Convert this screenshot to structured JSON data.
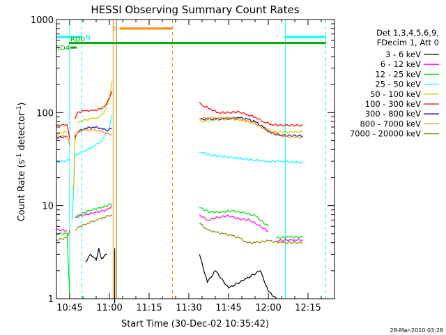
{
  "chart_data": {
    "type": "line",
    "title": "HESSI Observing Summary Count Rates",
    "xlabel": "Start Time (30-Dec-02 10:35:42)",
    "ylabel_main": "Count Rate (s",
    "ylabel_sup1": "-1",
    "ylabel_mid": " detector",
    "ylabel_sup2": "-1",
    "ylabel_end": ")",
    "yscale": "log",
    "ylim": [
      1,
      1000
    ],
    "xlim_minutes": [
      -5,
      100
    ],
    "x_ticks": [
      {
        "m": 0,
        "label": "10:45"
      },
      {
        "m": 15,
        "label": "11:00"
      },
      {
        "m": 30,
        "label": "11:15"
      },
      {
        "m": 45,
        "label": "11:30"
      },
      {
        "m": 60,
        "label": "11:45"
      },
      {
        "m": 75,
        "label": "12:00"
      },
      {
        "m": 90,
        "label": "12:15"
      }
    ],
    "y_ticks": [
      {
        "v": 1,
        "label": "1"
      },
      {
        "v": 10,
        "label": "10"
      },
      {
        "v": 100,
        "label": "100"
      },
      {
        "v": 1000,
        "label": "1000"
      }
    ],
    "legend_header": [
      "Det 1,3,4,5,6,9,",
      "FDecim 1, Att 0"
    ],
    "series": [
      {
        "name": "3 - 6 keV",
        "color": "#000000",
        "segments": [
          [
            [
              6,
              2.5
            ],
            [
              8,
              3.0
            ],
            [
              10,
              2.6
            ],
            [
              11,
              3.5
            ],
            [
              12,
              2.7
            ],
            [
              14,
              3.0
            ]
          ],
          [
            [
              17,
              3.5
            ],
            [
              17,
              0.9
            ]
          ],
          [
            [
              49,
              3.0
            ],
            [
              52,
              1.5
            ],
            [
              55,
              2.0
            ],
            [
              60,
              1.3
            ],
            [
              66,
              1.6
            ],
            [
              72,
              2.0
            ],
            [
              75,
              1.2
            ],
            [
              78,
              1.0
            ]
          ]
        ]
      },
      {
        "name": "6 - 12 keV",
        "color": "#ff00ff",
        "segments": [
          [
            [
              -5,
              5.5
            ],
            [
              -1,
              5.4
            ]
          ],
          [
            [
              2,
              7.5
            ],
            [
              6,
              8.0
            ],
            [
              10,
              8.5
            ],
            [
              14,
              9.0
            ],
            [
              16,
              10.0
            ]
          ],
          [
            [
              49,
              8.0
            ],
            [
              52,
              7.0
            ],
            [
              56,
              7.5
            ],
            [
              60,
              7.8
            ],
            [
              64,
              7.2
            ],
            [
              68,
              7.0
            ],
            [
              72,
              6.0
            ],
            [
              75,
              5.3
            ]
          ],
          [
            [
              78,
              4.2
            ],
            [
              85,
              4.3
            ],
            [
              88,
              4.3
            ]
          ]
        ]
      },
      {
        "name": "12 - 25 keV",
        "color": "#00dd00",
        "segments": [
          [
            [
              -5,
              5.0
            ],
            [
              -1,
              5.0
            ],
            [
              0,
              1.1
            ]
          ],
          [
            [
              2,
              7.5
            ],
            [
              4,
              8.0
            ],
            [
              8,
              9.0
            ],
            [
              12,
              9.5
            ],
            [
              16,
              10.5
            ]
          ],
          [
            [
              49,
              9.5
            ],
            [
              53,
              8.5
            ],
            [
              57,
              8.5
            ],
            [
              61,
              8.8
            ],
            [
              65,
              8.5
            ],
            [
              70,
              7.8
            ],
            [
              75,
              6.0
            ]
          ],
          [
            [
              78,
              4.5
            ],
            [
              83,
              4.6
            ],
            [
              88,
              4.6
            ]
          ]
        ]
      },
      {
        "name": "25 - 50 keV",
        "color": "#00ffff",
        "segments": [
          [
            [
              -5,
              29
            ],
            [
              0,
              31
            ]
          ],
          [
            [
              1,
              7.0
            ],
            [
              2,
              35
            ],
            [
              5,
              38
            ],
            [
              8,
              42
            ],
            [
              11,
              47
            ],
            [
              13,
              55
            ],
            [
              15,
              68
            ],
            [
              16,
              95
            ]
          ],
          [
            [
              49,
              38
            ],
            [
              53,
              35
            ],
            [
              57,
              34
            ],
            [
              61,
              33
            ],
            [
              65,
              32
            ],
            [
              69,
              31
            ],
            [
              75,
              30
            ],
            [
              80,
              30
            ],
            [
              88,
              29
            ]
          ]
        ]
      },
      {
        "name": "50 - 100 keV",
        "color": "#cccc00",
        "segments": [
          [
            [
              -5,
              60
            ],
            [
              -1,
              62
            ]
          ],
          [
            [
              1,
              15
            ],
            [
              1.5,
              16
            ],
            [
              2,
              62
            ]
          ],
          [
            [
              3,
              78
            ],
            [
              5,
              82
            ],
            [
              8,
              86
            ],
            [
              11,
              88
            ],
            [
              13,
              100
            ],
            [
              15,
              140
            ],
            [
              16,
              220
            ]
          ],
          [
            [
              49,
              80
            ],
            [
              53,
              82
            ],
            [
              57,
              84
            ],
            [
              61,
              86
            ],
            [
              65,
              82
            ],
            [
              70,
              78
            ],
            [
              73,
              70
            ],
            [
              77,
              62
            ],
            [
              88,
              62
            ]
          ]
        ]
      },
      {
        "name": "100 - 300 keV",
        "color": "#ff0000",
        "segments": [
          [
            [
              -5,
              72
            ],
            [
              -1,
              75
            ],
            [
              0,
              52
            ]
          ],
          [
            [
              2,
              85
            ],
            [
              3,
              100
            ],
            [
              6,
              105
            ],
            [
              9,
              105
            ],
            [
              12,
              110
            ],
            [
              14,
              125
            ],
            [
              16,
              170
            ]
          ],
          [
            [
              49,
              130
            ],
            [
              50,
              120
            ],
            [
              53,
              110
            ],
            [
              56,
              100
            ],
            [
              60,
              100
            ],
            [
              64,
              102
            ],
            [
              67,
              95
            ],
            [
              70,
              90
            ],
            [
              73,
              80
            ],
            [
              76,
              75
            ],
            [
              80,
              73
            ],
            [
              88,
              73
            ]
          ]
        ]
      },
      {
        "name": "300 - 800 keV",
        "color": "#0000aa",
        "segments": [
          [
            [
              -5,
              54
            ],
            [
              -1,
              55
            ]
          ],
          [
            [
              2,
              55
            ],
            [
              3,
              62
            ],
            [
              6,
              68
            ],
            [
              9,
              70
            ],
            [
              12,
              68
            ],
            [
              14,
              64
            ],
            [
              16,
              68
            ]
          ],
          [
            [
              49,
              85
            ],
            [
              52,
              85
            ],
            [
              55,
              85
            ],
            [
              58,
              86
            ],
            [
              61,
              86
            ],
            [
              64,
              88
            ],
            [
              67,
              85
            ],
            [
              70,
              80
            ],
            [
              73,
              70
            ],
            [
              76,
              60
            ],
            [
              80,
              57
            ],
            [
              88,
              56
            ]
          ]
        ]
      },
      {
        "name": "800 - 7000 keV",
        "color": "#ff8800",
        "segments": [
          [
            [
              -5,
              55
            ],
            [
              -1,
              56
            ],
            [
              0,
              44
            ]
          ],
          [
            [
              2,
              50
            ],
            [
              3,
              62
            ],
            [
              6,
              65
            ],
            [
              9,
              65
            ],
            [
              12,
              63
            ],
            [
              14,
              60
            ],
            [
              16,
              58
            ]
          ],
          [
            [
              49,
              85
            ],
            [
              52,
              88
            ],
            [
              55,
              88
            ],
            [
              58,
              88
            ],
            [
              61,
              88
            ],
            [
              64,
              86
            ],
            [
              67,
              82
            ],
            [
              70,
              76
            ],
            [
              73,
              68
            ],
            [
              76,
              62
            ],
            [
              80,
              56
            ],
            [
              88,
              54
            ]
          ]
        ]
      },
      {
        "name": "7000 - 20000 keV",
        "color": "#888800",
        "segments": [
          [
            [
              -5,
              4.3
            ],
            [
              -1,
              4.5
            ],
            [
              0,
              5.5
            ]
          ],
          [
            [
              2,
              5.5
            ],
            [
              4,
              6.0
            ],
            [
              7,
              6.5
            ],
            [
              10,
              7.0
            ],
            [
              13,
              7.5
            ],
            [
              16,
              8.0
            ]
          ],
          [
            [
              49,
              6.5
            ],
            [
              52,
              5.5
            ],
            [
              55,
              5.2
            ],
            [
              58,
              5.0
            ],
            [
              61,
              4.8
            ],
            [
              64,
              4.5
            ],
            [
              67,
              4.0
            ],
            [
              70,
              4.0
            ],
            [
              75,
              4.2
            ],
            [
              80,
              4.0
            ],
            [
              88,
              4.0
            ]
          ]
        ]
      }
    ],
    "flags": [
      {
        "name": "N",
        "label": "N",
        "color": "#00ffff",
        "y": 650,
        "segments": [
          [
            -5,
            4.6
          ],
          [
            81.4,
            96.7
          ]
        ]
      },
      {
        "name": "RD0",
        "label": "RD0",
        "color": "#00aa00",
        "y": 560,
        "segments": [
          [
            -0.3,
            96.7
          ]
        ]
      },
      {
        "name": "RD4",
        "label": "RD4",
        "color": "#00aa00",
        "y": 500,
        "segments": [
          [
            0.3,
            2.7
          ]
        ]
      },
      {
        "name": "S",
        "label": "S",
        "color": "#ff8800",
        "y": 800,
        "segments": [
          [
            18.8,
            38.8
          ]
        ]
      }
    ],
    "vlines": [
      {
        "m": 0.0,
        "color": "#00ffff",
        "style": "solid"
      },
      {
        "m": 4.6,
        "color": "#00ffff",
        "style": "dashed"
      },
      {
        "m": 16.4,
        "color": "#ff8800",
        "style": "solid"
      },
      {
        "m": 17.7,
        "color": "#888800",
        "style": "solid"
      },
      {
        "m": 38.8,
        "color": "#ff8800",
        "style": "dashed"
      },
      {
        "m": 81.4,
        "color": "#00ffff",
        "style": "solid"
      },
      {
        "m": 96.7,
        "color": "#00ffff",
        "style": "dashed"
      }
    ],
    "grid": false,
    "legend_position": "right"
  },
  "footer": {
    "date_stamp": "28-Mar-2010 03:28"
  }
}
